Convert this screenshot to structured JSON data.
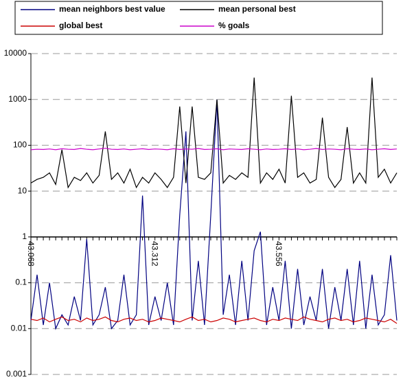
{
  "chart_data": {
    "type": "line",
    "yscale": "log",
    "grid": true,
    "legend": "top",
    "categories": [
      "43.068",
      null,
      null,
      null,
      null,
      null,
      null,
      null,
      null,
      null,
      null,
      null,
      null,
      null,
      null,
      null,
      null,
      null,
      null,
      null,
      "43.312",
      null,
      null,
      null,
      null,
      null,
      null,
      null,
      null,
      null,
      null,
      null,
      null,
      null,
      null,
      null,
      null,
      null,
      null,
      null,
      "43.556",
      null,
      null,
      null,
      null,
      null,
      null,
      null,
      null,
      null,
      null,
      null,
      null,
      null,
      null,
      null,
      null,
      null,
      null,
      null
    ],
    "ylim": [
      0.001,
      10000
    ],
    "yticks": [
      10000,
      1000,
      100,
      10,
      1,
      0.1,
      0.01,
      0.001
    ],
    "series": [
      {
        "name": "mean neighbors best value",
        "color": "#000080",
        "values": [
          0.015,
          0.15,
          0.012,
          0.1,
          0.01,
          0.02,
          0.012,
          0.05,
          0.015,
          0.9,
          0.012,
          0.02,
          0.08,
          0.01,
          0.015,
          0.15,
          0.012,
          0.02,
          8,
          0.012,
          0.05,
          0.015,
          0.1,
          0.012,
          3,
          200,
          0.015,
          0.3,
          0.012,
          3,
          1000,
          0.02,
          0.15,
          0.012,
          0.3,
          0.015,
          0.5,
          1.3,
          0.012,
          0.08,
          0.015,
          0.3,
          0.01,
          0.2,
          0.012,
          0.05,
          0.015,
          0.2,
          0.01,
          0.08,
          0.015,
          0.2,
          0.012,
          0.3,
          0.01,
          0.15,
          0.012,
          0.02,
          0.4,
          0.015
        ]
      },
      {
        "name": "mean personal best",
        "color": "#000000",
        "values": [
          15,
          18,
          20,
          25,
          14,
          80,
          12,
          20,
          17,
          25,
          15,
          22,
          200,
          18,
          25,
          15,
          30,
          12,
          20,
          15,
          25,
          18,
          12,
          20,
          700,
          15,
          700,
          20,
          18,
          25,
          1000,
          15,
          22,
          18,
          25,
          20,
          3000,
          15,
          25,
          18,
          30,
          15,
          1200,
          20,
          25,
          15,
          18,
          400,
          20,
          12,
          18,
          250,
          15,
          25,
          15,
          3000,
          20,
          30,
          15,
          25
        ]
      },
      {
        "name": "global best",
        "color": "#cc0000",
        "values": [
          0.016,
          0.015,
          0.017,
          0.014,
          0.016,
          0.018,
          0.015,
          0.016,
          0.014,
          0.017,
          0.015,
          0.016,
          0.018,
          0.015,
          0.014,
          0.016,
          0.017,
          0.015,
          0.016,
          0.014,
          0.015,
          0.017,
          0.016,
          0.015,
          0.014,
          0.016,
          0.018,
          0.015,
          0.016,
          0.014,
          0.015,
          0.017,
          0.016,
          0.014,
          0.015,
          0.016,
          0.017,
          0.015,
          0.014,
          0.016,
          0.015,
          0.017,
          0.016,
          0.015,
          0.018,
          0.016,
          0.015,
          0.014,
          0.016,
          0.017,
          0.015,
          0.016,
          0.014,
          0.015,
          0.017,
          0.016,
          0.015,
          0.014,
          0.016,
          0.013
        ]
      },
      {
        "name": "% goals",
        "color": "#cc00cc",
        "values": [
          80,
          82,
          81,
          83,
          80,
          84,
          82,
          81,
          85,
          82,
          80,
          83,
          86,
          82,
          81,
          83,
          80,
          82,
          84,
          81,
          83,
          82,
          80,
          84,
          81,
          83,
          82,
          85,
          81,
          82,
          84,
          80,
          83,
          82,
          81,
          84,
          82,
          80,
          83,
          81,
          82,
          84,
          81,
          83,
          80,
          82,
          85,
          81,
          83,
          82,
          80,
          84,
          82,
          81,
          83,
          80,
          82,
          84,
          81,
          83
        ]
      }
    ]
  }
}
